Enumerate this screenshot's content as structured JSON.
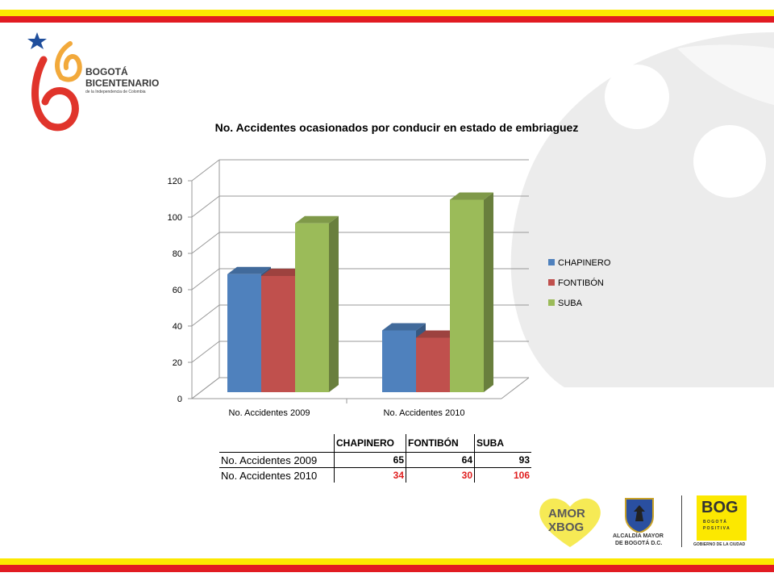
{
  "logo": {
    "line1": "BOGOTÁ",
    "line2": "BICENTENARIO",
    "line3": "de la Independencia de Colombia"
  },
  "footer_logos": {
    "amor_line1": "AMOR",
    "amor_line2": "XBOG",
    "alcaldia_line1": "ALCALDÍA MAYOR",
    "alcaldia_line2": "DE BOGOTÁ D.C.",
    "bog_main": "BOG",
    "bog_sub1": "B O G O T Á",
    "bog_sub2": "P O S I T I V A",
    "bog_sub3": "GOBIERNO DE LA CIUDAD"
  },
  "colors": {
    "stripe_yellow": "#fce800",
    "stripe_red": "#e11b22",
    "chapinero": "#4f81bd",
    "fontibon": "#c0504d",
    "suba": "#9bbb59"
  },
  "chart_data": {
    "type": "bar",
    "title": "No.  Accidentes ocasionados por conducir en estado de embriaguez",
    "categories": [
      "No. Accidentes 2009",
      "No. Accidentes 2010"
    ],
    "series": [
      {
        "name": "CHAPINERO",
        "values": [
          65,
          34
        ]
      },
      {
        "name": "FONTIBÓN",
        "values": [
          64,
          30
        ]
      },
      {
        "name": "SUBA",
        "values": [
          93,
          106
        ]
      }
    ],
    "yticks": [
      "0",
      "20",
      "40",
      "60",
      "80",
      "100",
      "120"
    ],
    "ylim": [
      0,
      120
    ],
    "grid": true,
    "legend": "right",
    "xlabel": "",
    "ylabel": ""
  },
  "table": {
    "headers": [
      "CHAPINERO",
      "FONTIBÓN",
      "SUBA"
    ],
    "rows": [
      {
        "label": "No. Accidentes 2009",
        "values": [
          "65",
          "64",
          "93"
        ]
      },
      {
        "label": "No. Accidentes 2010",
        "values": [
          "34",
          "30",
          "106"
        ]
      }
    ]
  }
}
